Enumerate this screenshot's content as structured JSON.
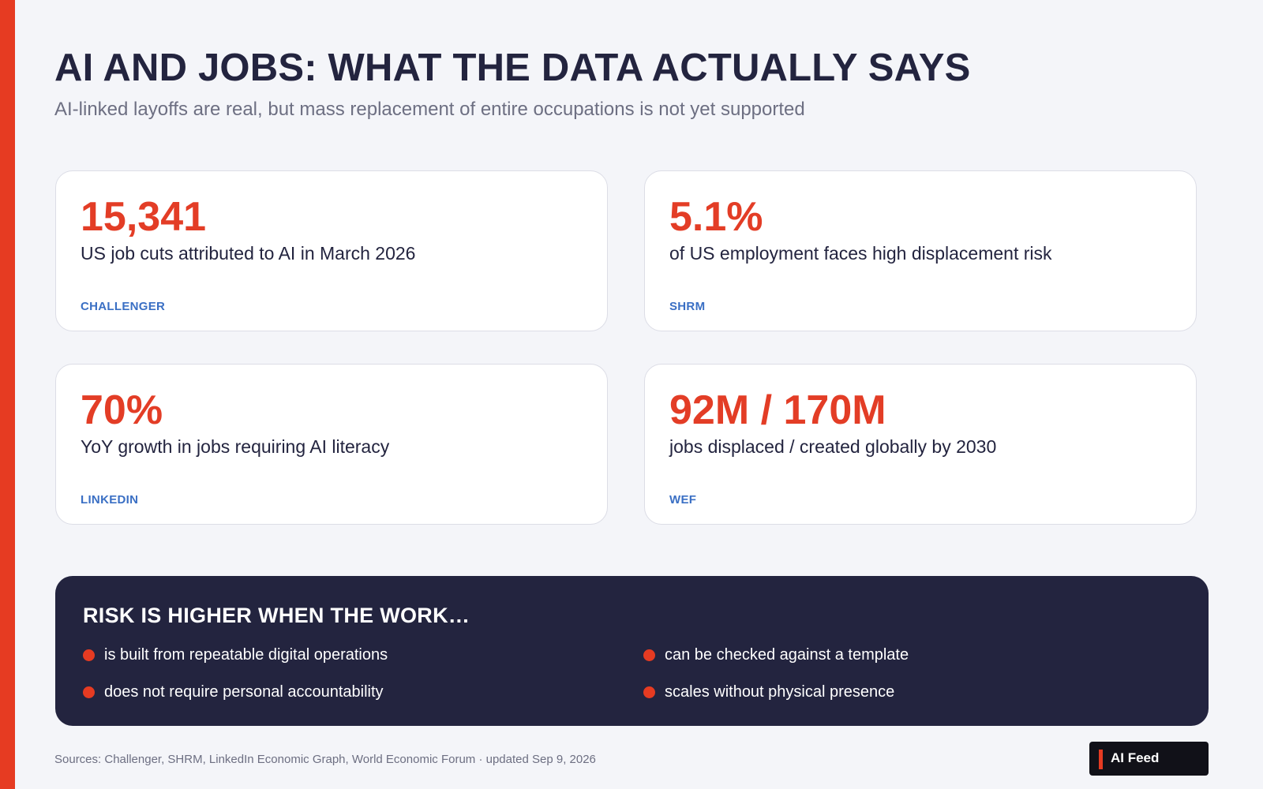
{
  "header": {
    "title": "AI AND JOBS: WHAT THE DATA ACTUALLY SAYS",
    "subtitle": "AI-linked layoffs are real, but mass replacement of entire occupations is not yet supported"
  },
  "cards": [
    {
      "stat": "15,341",
      "desc": "US job cuts attributed to AI in March 2026",
      "source": "CHALLENGER"
    },
    {
      "stat": "5.1%",
      "desc": "of US employment faces high displacement risk",
      "source": "SHRM"
    },
    {
      "stat": "70%",
      "desc": "YoY growth in jobs requiring AI literacy",
      "source": "LINKEDIN"
    },
    {
      "stat": "92M / 170M",
      "desc": "jobs displaced / created globally by 2030",
      "source": "WEF"
    }
  ],
  "risk": {
    "title": "RISK IS HIGHER WHEN THE WORK…",
    "items": [
      "is built from repeatable digital operations",
      "can be checked against a template",
      "does not require personal accountability",
      "scales without physical presence"
    ]
  },
  "footer": {
    "sources": "Sources: Challenger, SHRM, LinkedIn Economic Graph, World Economic Forum · updated Sep 9, 2026",
    "badge": "AI Feed"
  },
  "colors": {
    "accent": "#e63b22",
    "navy": "#23243f",
    "source_blue": "#3a6fc4",
    "background": "#f4f5f9"
  }
}
